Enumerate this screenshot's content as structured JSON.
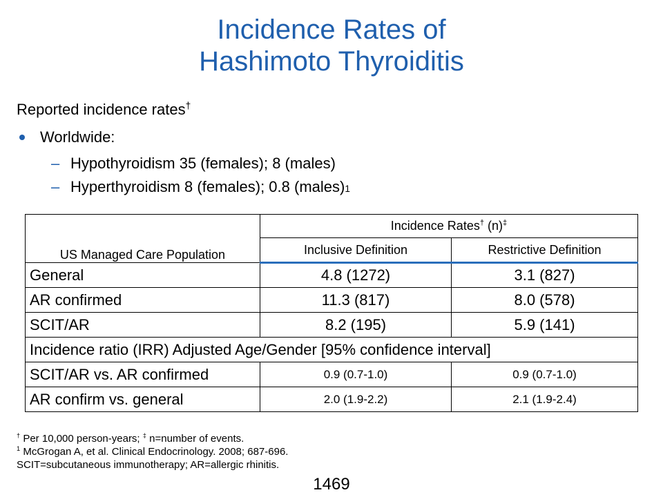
{
  "title": {
    "line1": "Incidence Rates of",
    "line2": "Hashimoto Thyroiditis"
  },
  "heading": {
    "text": "Reported incidence rates",
    "mark": "†"
  },
  "bullet": {
    "label": "Worldwide:",
    "subitems": [
      {
        "text": "Hypothyroidism 35 (females); 8 (males)",
        "sup": ""
      },
      {
        "text": "Hyperthyroidism 8 (females); 0.8 (males)",
        "sup": "1"
      }
    ]
  },
  "table": {
    "population_header": "US Managed Care Population",
    "rates_header": {
      "text": "Incidence Rates",
      "mark": "†",
      "n": " (n)",
      "mark2": "‡"
    },
    "col_inclusive": "Inclusive Definition",
    "col_restrictive": "Restrictive Definition",
    "rows": [
      {
        "label": "General",
        "inclusive": "4.8 (1272)",
        "restrictive": "3.1 (827)"
      },
      {
        "label": "AR confirmed",
        "inclusive": "11.3 (817)",
        "restrictive": "8.0 (578)"
      },
      {
        "label": "SCIT/AR",
        "inclusive": "8.2 (195)",
        "restrictive": "5.9 (141)"
      }
    ],
    "irr_header": "Incidence ratio (IRR) Adjusted Age/Gender [95% confidence interval]",
    "irr_rows": [
      {
        "label": "SCIT/AR vs. AR confirmed",
        "inclusive": "0.9 (0.7-1.0)",
        "restrictive": "0.9 (0.7-1.0)"
      },
      {
        "label": "AR confirm vs. general",
        "inclusive": "2.0 (1.9-2.2)",
        "restrictive": "2.1 (1.9-2.4)"
      }
    ]
  },
  "footnotes": {
    "f1": {
      "mark": "†",
      "text": " Per 10,000 person-years; ",
      "mark2": "‡",
      "text2": " n=number of events."
    },
    "f2": {
      "mark": "1",
      "text": " McGrogan A, et al. Clinical Endocrinology. 2008; 687-696."
    },
    "f3": {
      "text": "SCIT=subcutaneous immunotherapy; AR=allergic rhinitis."
    }
  },
  "page_number": "1469",
  "colors": {
    "title": "#1f5fad",
    "accent": "#2a6ebb"
  }
}
